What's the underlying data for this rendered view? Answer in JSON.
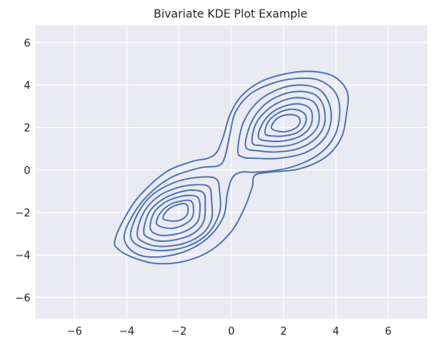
{
  "chart_data": {
    "type": "contour",
    "kind": "bivariate-kde",
    "title": "Bivariate KDE Plot Example",
    "xlabel": "",
    "ylabel": "",
    "xlim": [
      -7.5,
      7.5
    ],
    "ylim": [
      -7.0,
      6.8
    ],
    "xticks": [
      -6,
      -4,
      -2,
      0,
      2,
      4,
      6
    ],
    "yticks": [
      -6,
      -4,
      -2,
      0,
      2,
      4,
      6
    ],
    "grid": true,
    "background": "#eaeaf2",
    "line_color": "#4c72b0",
    "modes": [
      {
        "x": -2.1,
        "y": -1.8
      },
      {
        "x": 2.0,
        "y": 2.1
      }
    ],
    "contour_levels": 9,
    "contours": [
      {
        "level": 1,
        "points": [
          [
            -4.45,
            -3.3
          ],
          [
            -4.1,
            -2.3
          ],
          [
            -3.5,
            -1.2
          ],
          [
            -2.5,
            -0.1
          ],
          [
            -1.5,
            0.4
          ],
          [
            -0.9,
            0.55
          ],
          [
            -0.55,
            0.85
          ],
          [
            -0.3,
            1.6
          ],
          [
            -0.05,
            2.6
          ],
          [
            0.4,
            3.5
          ],
          [
            1.2,
            4.2
          ],
          [
            2.4,
            4.6
          ],
          [
            3.4,
            4.6
          ],
          [
            4.05,
            4.3
          ],
          [
            4.45,
            3.6
          ],
          [
            4.4,
            2.6
          ],
          [
            4.2,
            1.5
          ],
          [
            3.6,
            0.6
          ],
          [
            2.6,
            0.05
          ],
          [
            1.5,
            -0.1
          ],
          [
            0.9,
            -0.25
          ],
          [
            0.8,
            -0.8
          ],
          [
            0.5,
            -1.8
          ],
          [
            0.0,
            -2.9
          ],
          [
            -0.8,
            -3.8
          ],
          [
            -1.8,
            -4.3
          ],
          [
            -2.9,
            -4.4
          ],
          [
            -3.8,
            -4.1
          ],
          [
            -4.35,
            -3.7
          ]
        ]
      },
      {
        "level": 2,
        "points": [
          [
            -4.1,
            -3.2
          ],
          [
            -3.8,
            -2.2
          ],
          [
            -3.2,
            -1.2
          ],
          [
            -2.3,
            -0.35
          ],
          [
            -1.2,
            0.1
          ],
          [
            -0.5,
            0.2
          ],
          [
            -0.25,
            0.6
          ],
          [
            -0.05,
            1.7
          ],
          [
            0.15,
            2.7
          ],
          [
            0.7,
            3.55
          ],
          [
            1.5,
            4.05
          ],
          [
            2.4,
            4.3
          ],
          [
            3.3,
            4.25
          ],
          [
            3.95,
            3.7
          ],
          [
            4.15,
            2.8
          ],
          [
            3.95,
            1.6
          ],
          [
            3.3,
            0.7
          ],
          [
            2.2,
            0.1
          ],
          [
            1.0,
            -0.1
          ],
          [
            0.4,
            -0.1
          ],
          [
            0.05,
            -0.35
          ],
          [
            -0.15,
            -1.1
          ],
          [
            -0.3,
            -2.2
          ],
          [
            -0.9,
            -3.2
          ],
          [
            -1.8,
            -3.85
          ],
          [
            -2.9,
            -4.1
          ],
          [
            -3.7,
            -3.9
          ]
        ]
      },
      {
        "level": 3,
        "points": [
          [
            -3.85,
            -3.1
          ],
          [
            -3.6,
            -2.1
          ],
          [
            -3.05,
            -1.2
          ],
          [
            -2.2,
            -0.6
          ],
          [
            -1.3,
            -0.35
          ],
          [
            -0.6,
            -0.4
          ],
          [
            -0.45,
            -1.0
          ],
          [
            -0.45,
            -2.0
          ],
          [
            -0.9,
            -3.0
          ],
          [
            -1.7,
            -3.6
          ],
          [
            -2.7,
            -3.8
          ],
          [
            -3.5,
            -3.6
          ]
        ]
      },
      {
        "level": 4,
        "points": [
          [
            -3.6,
            -3.0
          ],
          [
            -3.35,
            -2.0
          ],
          [
            -2.8,
            -1.25
          ],
          [
            -2.1,
            -0.85
          ],
          [
            -1.4,
            -0.7
          ],
          [
            -0.85,
            -0.8
          ],
          [
            -0.75,
            -1.5
          ],
          [
            -0.75,
            -2.3
          ],
          [
            -1.1,
            -3.0
          ],
          [
            -1.8,
            -3.45
          ],
          [
            -2.7,
            -3.6
          ],
          [
            -3.35,
            -3.4
          ]
        ]
      },
      {
        "level": 5,
        "points": [
          [
            -3.35,
            -2.9
          ],
          [
            -3.15,
            -2.0
          ],
          [
            -2.65,
            -1.4
          ],
          [
            -2.0,
            -1.05
          ],
          [
            -1.45,
            -0.95
          ],
          [
            -1.05,
            -1.1
          ],
          [
            -1.0,
            -1.7
          ],
          [
            -1.05,
            -2.4
          ],
          [
            -1.4,
            -2.95
          ],
          [
            -2.0,
            -3.25
          ],
          [
            -2.7,
            -3.35
          ],
          [
            -3.15,
            -3.2
          ]
        ]
      },
      {
        "level": 6,
        "points": [
          [
            -3.1,
            -2.75
          ],
          [
            -2.95,
            -2.0
          ],
          [
            -2.5,
            -1.5
          ],
          [
            -1.95,
            -1.25
          ],
          [
            -1.5,
            -1.2
          ],
          [
            -1.25,
            -1.35
          ],
          [
            -1.2,
            -1.9
          ],
          [
            -1.3,
            -2.45
          ],
          [
            -1.7,
            -2.85
          ],
          [
            -2.25,
            -3.05
          ],
          [
            -2.8,
            -3.05
          ]
        ]
      },
      {
        "level": 7,
        "points": [
          [
            -2.85,
            -2.55
          ],
          [
            -2.7,
            -2.0
          ],
          [
            -2.3,
            -1.6
          ],
          [
            -1.85,
            -1.45
          ],
          [
            -1.55,
            -1.45
          ],
          [
            -1.45,
            -1.75
          ],
          [
            -1.5,
            -2.25
          ],
          [
            -1.85,
            -2.6
          ],
          [
            -2.35,
            -2.75
          ]
        ]
      },
      {
        "level": 8,
        "points": [
          [
            -2.6,
            -2.3
          ],
          [
            -2.45,
            -1.9
          ],
          [
            -2.1,
            -1.65
          ],
          [
            -1.75,
            -1.6
          ],
          [
            -1.65,
            -1.85
          ],
          [
            -1.75,
            -2.2
          ],
          [
            -2.1,
            -2.4
          ]
        ]
      },
      {
        "level": 3,
        "points": [
          [
            0.25,
            0.9
          ],
          [
            0.45,
            2.2
          ],
          [
            1.0,
            3.2
          ],
          [
            1.8,
            3.8
          ],
          [
            2.6,
            4.0
          ],
          [
            3.35,
            3.8
          ],
          [
            3.75,
            3.1
          ],
          [
            3.8,
            2.2
          ],
          [
            3.5,
            1.4
          ],
          [
            2.8,
            0.8
          ],
          [
            1.8,
            0.55
          ],
          [
            0.9,
            0.55
          ],
          [
            0.45,
            0.6
          ]
        ]
      },
      {
        "level": 4,
        "points": [
          [
            0.55,
            1.1
          ],
          [
            0.75,
            2.2
          ],
          [
            1.25,
            3.05
          ],
          [
            1.95,
            3.55
          ],
          [
            2.65,
            3.7
          ],
          [
            3.25,
            3.5
          ],
          [
            3.55,
            2.9
          ],
          [
            3.55,
            2.1
          ],
          [
            3.2,
            1.45
          ],
          [
            2.55,
            1.0
          ],
          [
            1.75,
            0.85
          ],
          [
            1.05,
            0.9
          ]
        ]
      },
      {
        "level": 5,
        "points": [
          [
            0.8,
            1.3
          ],
          [
            0.95,
            2.2
          ],
          [
            1.45,
            2.9
          ],
          [
            2.05,
            3.3
          ],
          [
            2.65,
            3.4
          ],
          [
            3.15,
            3.2
          ],
          [
            3.35,
            2.7
          ],
          [
            3.3,
            2.05
          ],
          [
            2.95,
            1.55
          ],
          [
            2.35,
            1.2
          ],
          [
            1.7,
            1.1
          ],
          [
            1.15,
            1.15
          ]
        ]
      },
      {
        "level": 6,
        "points": [
          [
            1.05,
            1.5
          ],
          [
            1.2,
            2.2
          ],
          [
            1.6,
            2.75
          ],
          [
            2.15,
            3.05
          ],
          [
            2.65,
            3.1
          ],
          [
            3.0,
            2.9
          ],
          [
            3.1,
            2.5
          ],
          [
            3.0,
            2.0
          ],
          [
            2.65,
            1.6
          ],
          [
            2.15,
            1.4
          ],
          [
            1.6,
            1.35
          ]
        ]
      },
      {
        "level": 7,
        "points": [
          [
            1.3,
            1.7
          ],
          [
            1.4,
            2.25
          ],
          [
            1.75,
            2.65
          ],
          [
            2.2,
            2.85
          ],
          [
            2.6,
            2.8
          ],
          [
            2.85,
            2.55
          ],
          [
            2.8,
            2.1
          ],
          [
            2.5,
            1.75
          ],
          [
            2.0,
            1.6
          ],
          [
            1.6,
            1.6
          ]
        ]
      },
      {
        "level": 8,
        "points": [
          [
            1.55,
            1.95
          ],
          [
            1.65,
            2.3
          ],
          [
            1.95,
            2.55
          ],
          [
            2.35,
            2.6
          ],
          [
            2.6,
            2.45
          ],
          [
            2.6,
            2.15
          ],
          [
            2.35,
            1.9
          ],
          [
            1.95,
            1.8
          ]
        ]
      }
    ]
  }
}
